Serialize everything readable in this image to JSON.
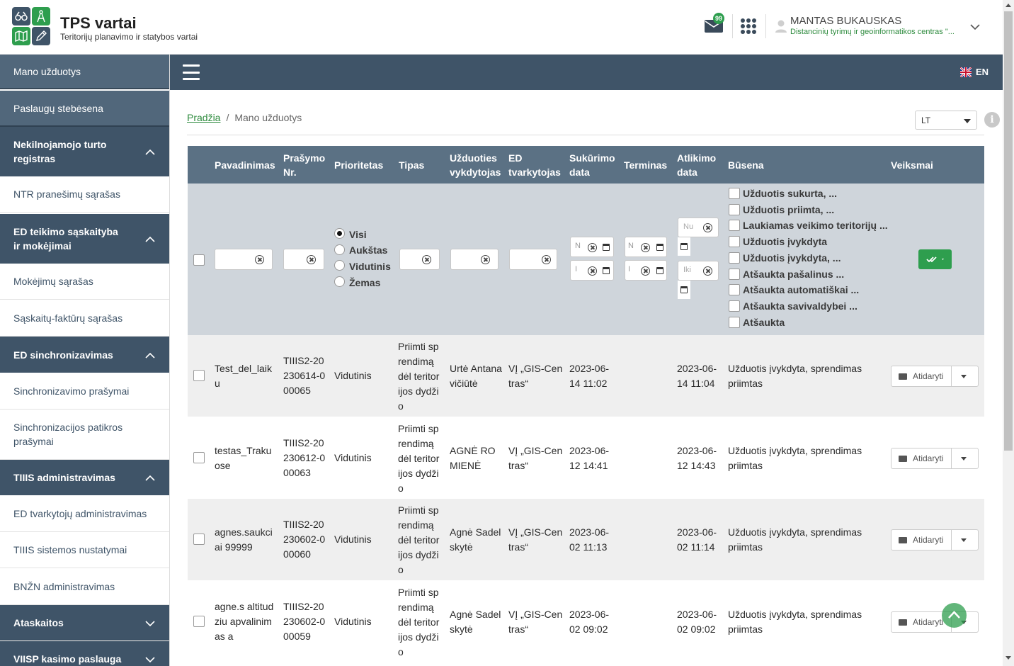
{
  "header": {
    "brand_title": "TPS vartai",
    "brand_subtitle": "Teritorijų planavimo ir statybos vartai",
    "mail_badge": "99",
    "user_name": "MANTAS BUKAUSKAS",
    "user_org": "Distancinių tyrimų ir geoinformatikos centras \"..."
  },
  "colors": {
    "primary": "#3f5468",
    "accent_green": "#2e9e4e",
    "header_row": "#5b7184",
    "filter_row": "#cfd5db"
  },
  "sidebar": {
    "items": [
      {
        "label": "Mano užduotys",
        "style": "dark2"
      },
      {
        "label": "Paslaugų stebėsena",
        "style": "dark2"
      },
      {
        "label": "Nekilnojamojo turto registras",
        "style": "dark",
        "chevron": "up"
      },
      {
        "label": "NTR pranešimų sąrašas",
        "style": "light"
      },
      {
        "label": "ED teikimo sąskaityba ir mokėjimai",
        "style": "dark",
        "chevron": "up"
      },
      {
        "label": "Mokėjimų sąrašas",
        "style": "light"
      },
      {
        "label": "Sąskaitų-faktūrų sąrašas",
        "style": "light"
      },
      {
        "label": "ED sinchronizavimas",
        "style": "dark",
        "chevron": "up"
      },
      {
        "label": "Sinchronizavimo prašymai",
        "style": "light"
      },
      {
        "label": "Sinchronizacijos patikros prašymai",
        "style": "light"
      },
      {
        "label": "TIIIS administravimas",
        "style": "dark",
        "chevron": "up"
      },
      {
        "label": "ED tvarkytojų administravimas",
        "style": "light"
      },
      {
        "label": "TIIIS sistemos nustatymai",
        "style": "light"
      },
      {
        "label": "BNŽN administravimas",
        "style": "light"
      },
      {
        "label": "Ataskaitos",
        "style": "dark",
        "chevron": "down"
      },
      {
        "label": "VIISP kasimo paslauga",
        "style": "dark",
        "chevron": "down"
      }
    ]
  },
  "topbar": {
    "lang": "EN"
  },
  "breadcrumb": {
    "home": "Pradžia",
    "separator": "/",
    "current": "Mano užduotys"
  },
  "lang_select": {
    "value": "LT"
  },
  "info_icon": "i",
  "table": {
    "headers": [
      "Pavadinimas",
      "Prašymo Nr.",
      "Prioritetas",
      "Tipas",
      "Užduoties vykdytojas",
      "ED tvarkytojas",
      "Sukūrimo data",
      "Terminas",
      "Atlikimo data",
      "Būsena",
      "Veiksmai"
    ],
    "priority_options": [
      {
        "label": "Visi",
        "selected": true
      },
      {
        "label": "Aukštas",
        "selected": false
      },
      {
        "label": "Vidutinis",
        "selected": false
      },
      {
        "label": "Žemas",
        "selected": false
      }
    ],
    "date_placeholders": {
      "from_short": "Nu",
      "to_short": "Iki",
      "from": "N",
      "to": "I"
    },
    "status_options": [
      "Užduotis sukurta, ...",
      "Užduotis priimta, ...",
      "Laukiamas veikimo teritorijų ...",
      "Užduotis įvykdyta",
      "Užduotis įvykdyta, ...",
      "Atšaukta pašalinus ...",
      "Atšaukta automatiškai ...",
      "Atšaukta savivaldybei ...",
      "Atšaukta"
    ],
    "rows": [
      {
        "name": "Test_del_laiku",
        "req": "TIIIS2-20230614-000065",
        "priority": "Vidutinis",
        "type": "Priimti sprendimą dėl teritorijos dydžio",
        "executor": "Urtė Antanavičiūtė",
        "ed": "VĮ „GIS-Centras“",
        "created": "2023-06-14 11:02",
        "deadline": "",
        "done": "2023-06-14 11:04",
        "status": "Užduotis įvykdyta, sprendimas priimtas",
        "action": "Atidaryti"
      },
      {
        "name": "testas_Trakuose",
        "req": "TIIIS2-20230612-000063",
        "priority": "Vidutinis",
        "type": "Priimti sprendimą dėl teritorijos dydžio",
        "executor": "AGNĖ ROMIENĖ",
        "ed": "VĮ „GIS-Centras“",
        "created": "2023-06-12 14:41",
        "deadline": "",
        "done": "2023-06-12 14:43",
        "status": "Užduotis įvykdyta, sprendimas priimtas",
        "action": "Atidaryti"
      },
      {
        "name": "agnes.saukciai 99999",
        "req": "TIIIS2-20230602-000060",
        "priority": "Vidutinis",
        "type": "Priimti sprendimą dėl teritorijos dydžio",
        "executor": "Agnė Sadelskytė",
        "ed": "VĮ „GIS-Centras“",
        "created": "2023-06-02 11:13",
        "deadline": "",
        "done": "2023-06-02 11:14",
        "status": "Užduotis įvykdyta, sprendimas priimtas",
        "action": "Atidaryti"
      },
      {
        "name": "agne.s altitudziu apvalinimas a",
        "req": "TIIIS2-20230602-000059",
        "priority": "Vidutinis",
        "type": "Priimti sprendimą dėl teritorijos dydžio",
        "executor": "Agnė Sadelskytė",
        "ed": "VĮ „GIS-Centras“",
        "created": "2023-06-02 09:02",
        "deadline": "",
        "done": "2023-06-02 09:02",
        "status": "Užduotis įvykdyta, sprendimas priimtas",
        "action": "Atidaryti"
      }
    ]
  }
}
